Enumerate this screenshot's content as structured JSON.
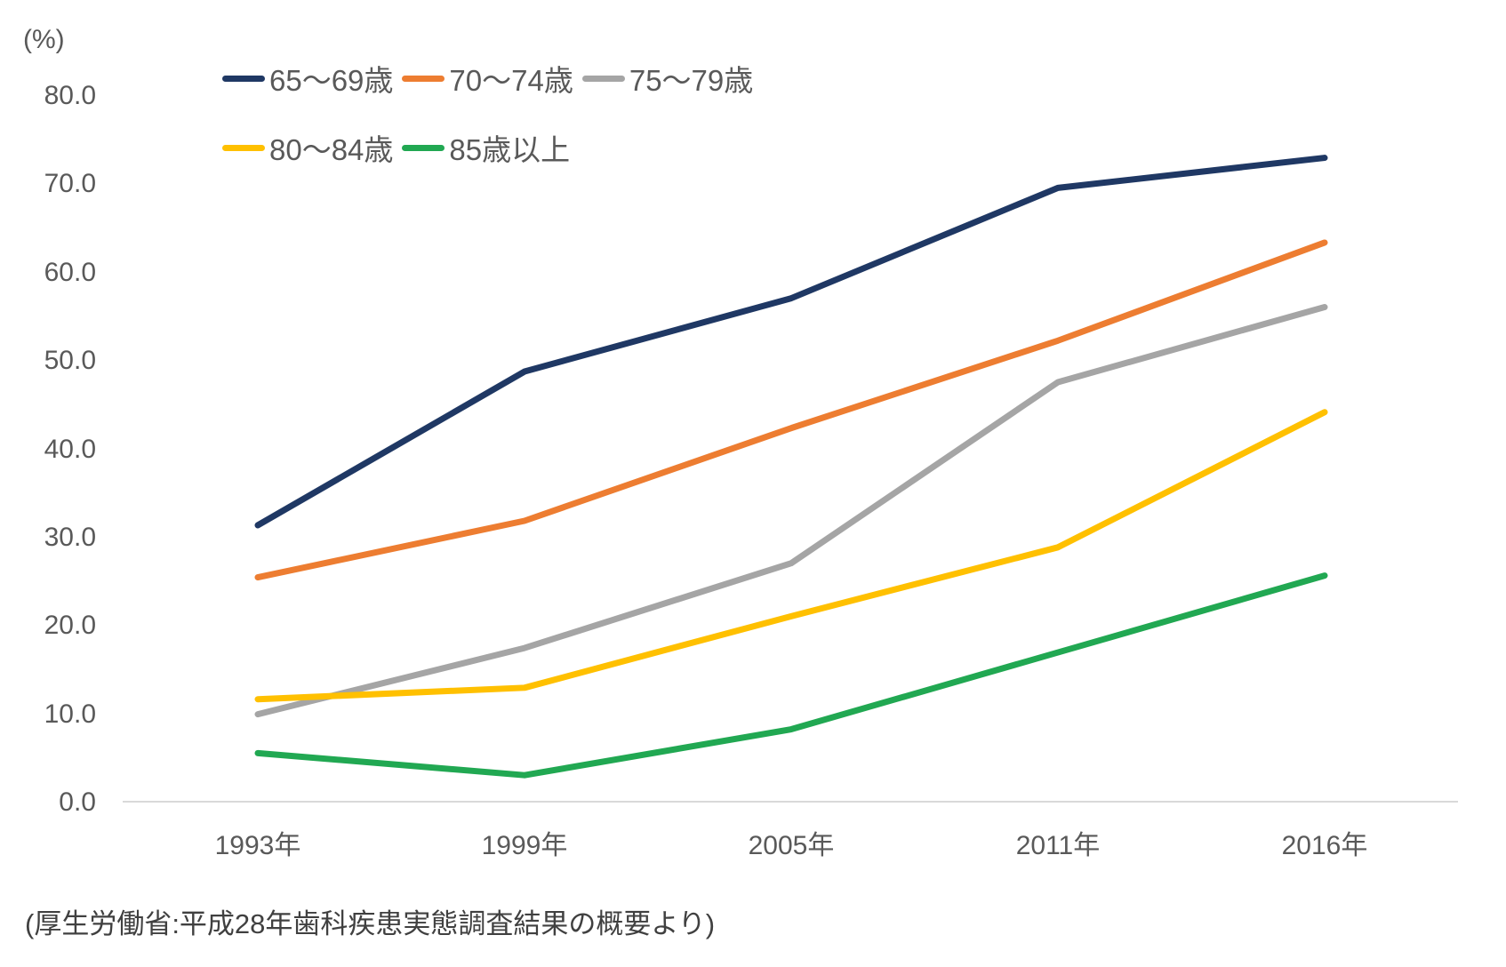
{
  "chart_data": {
    "type": "line",
    "unit_label": "(%)",
    "x_categories": [
      "1993年",
      "1999年",
      "2005年",
      "2011年",
      "2016年"
    ],
    "series": [
      {
        "name": "65〜69歳",
        "color": "#1F3864",
        "values": [
          31.4,
          48.8,
          57.1,
          69.6,
          73.0
        ]
      },
      {
        "name": "70〜74歳",
        "color": "#ED7D31",
        "values": [
          25.5,
          31.9,
          42.4,
          52.3,
          63.4
        ]
      },
      {
        "name": "75〜79歳",
        "color": "#A5A5A5",
        "values": [
          10.0,
          17.5,
          27.1,
          47.6,
          56.1
        ]
      },
      {
        "name": "80〜84歳",
        "color": "#FFC000",
        "values": [
          11.7,
          13.0,
          21.1,
          28.9,
          44.2
        ]
      },
      {
        "name": "85歳以上",
        "color": "#21A852",
        "values": [
          5.6,
          3.1,
          8.3,
          17.0,
          25.7
        ]
      }
    ],
    "y_axis": {
      "min": 0,
      "max": 80,
      "tick_step": 10,
      "tick_labels": [
        "0.0",
        "10.0",
        "20.0",
        "30.0",
        "40.0",
        "50.0",
        "60.0",
        "70.0",
        "80.0"
      ]
    },
    "legend_position": "top",
    "legend_rows": [
      [
        0,
        1,
        2
      ],
      [
        3,
        4
      ]
    ],
    "grid": false
  },
  "source_note": "(厚生労働省:平成28年歯科疾患実態調査結果の概要より)",
  "colors": {
    "background": "#FFFFFF",
    "axis_line": "#D9D9D9",
    "tick_text": "#595959",
    "source_text": "#404040"
  }
}
